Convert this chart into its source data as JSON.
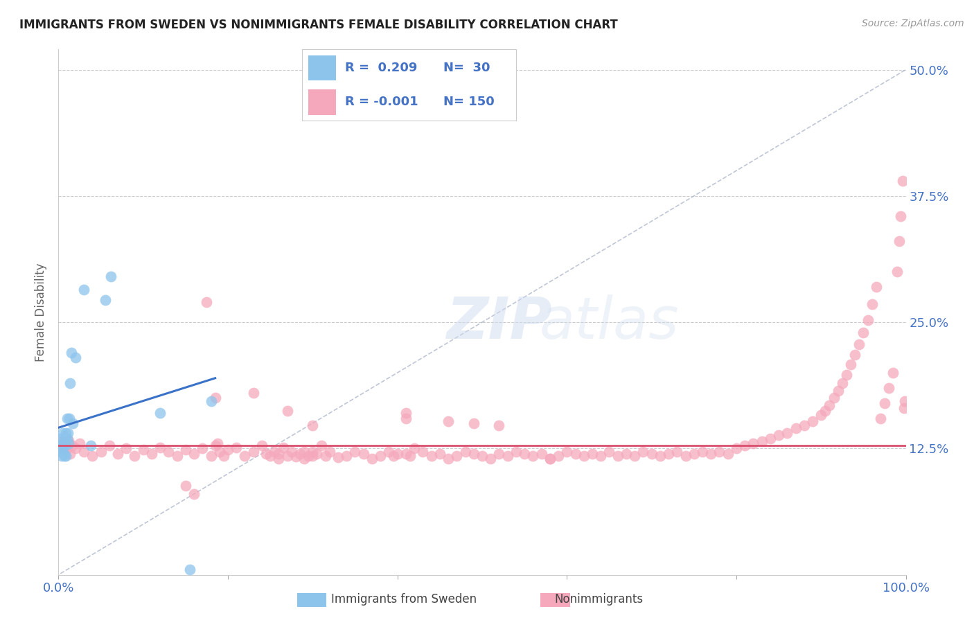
{
  "title": "IMMIGRANTS FROM SWEDEN VS NONIMMIGRANTS FEMALE DISABILITY CORRELATION CHART",
  "source": "Source: ZipAtlas.com",
  "ylabel": "Female Disability",
  "xlim": [
    0.0,
    1.0
  ],
  "ylim": [
    0.0,
    0.52
  ],
  "ytick_vals": [
    0.125,
    0.25,
    0.375,
    0.5
  ],
  "ytick_labels": [
    "12.5%",
    "25.0%",
    "37.5%",
    "50.0%"
  ],
  "xtick_vals": [
    0.0,
    0.2,
    0.4,
    0.6,
    0.8,
    1.0
  ],
  "xtick_labels": [
    "0.0%",
    "",
    "",
    "",
    "",
    "100.0%"
  ],
  "blue_color": "#8DC4EC",
  "pink_color": "#F5A8BC",
  "trendline_blue_color": "#3A72C8",
  "trendline_pink_color": "#D94F6E",
  "diag_color": "#B0B8CC",
  "R_blue": 0.209,
  "N_blue": 30,
  "R_pink": -0.001,
  "N_pink": 150,
  "pink_trend_y": 0.128,
  "blue_x": [
    0.002,
    0.003,
    0.003,
    0.004,
    0.004,
    0.005,
    0.005,
    0.006,
    0.007,
    0.007,
    0.008,
    0.008,
    0.009,
    0.009,
    0.01,
    0.01,
    0.011,
    0.012,
    0.013,
    0.014,
    0.015,
    0.017,
    0.02,
    0.03,
    0.038,
    0.055,
    0.062,
    0.12,
    0.155,
    0.18
  ],
  "blue_y": [
    0.128,
    0.122,
    0.135,
    0.118,
    0.13,
    0.125,
    0.14,
    0.12,
    0.13,
    0.118,
    0.135,
    0.128,
    0.14,
    0.118,
    0.135,
    0.155,
    0.14,
    0.13,
    0.155,
    0.19,
    0.22,
    0.15,
    0.215,
    0.282,
    0.128,
    0.272,
    0.295,
    0.16,
    0.005,
    0.172
  ],
  "pink_x": [
    0.002,
    0.004,
    0.006,
    0.008,
    0.01,
    0.012,
    0.014,
    0.016,
    0.02,
    0.025,
    0.03,
    0.04,
    0.05,
    0.06,
    0.07,
    0.08,
    0.09,
    0.1,
    0.11,
    0.12,
    0.13,
    0.14,
    0.15,
    0.16,
    0.17,
    0.175,
    0.18,
    0.185,
    0.188,
    0.19,
    0.195,
    0.2,
    0.21,
    0.22,
    0.23,
    0.24,
    0.245,
    0.25,
    0.255,
    0.26,
    0.265,
    0.27,
    0.275,
    0.28,
    0.285,
    0.29,
    0.295,
    0.3,
    0.305,
    0.31,
    0.315,
    0.32,
    0.33,
    0.34,
    0.35,
    0.36,
    0.37,
    0.38,
    0.39,
    0.4,
    0.41,
    0.415,
    0.42,
    0.43,
    0.44,
    0.45,
    0.46,
    0.47,
    0.48,
    0.49,
    0.5,
    0.51,
    0.52,
    0.53,
    0.54,
    0.55,
    0.56,
    0.57,
    0.58,
    0.59,
    0.6,
    0.61,
    0.62,
    0.63,
    0.64,
    0.65,
    0.66,
    0.67,
    0.68,
    0.69,
    0.7,
    0.71,
    0.72,
    0.73,
    0.74,
    0.75,
    0.76,
    0.77,
    0.78,
    0.79,
    0.8,
    0.81,
    0.82,
    0.83,
    0.84,
    0.85,
    0.86,
    0.87,
    0.88,
    0.89,
    0.9,
    0.905,
    0.91,
    0.915,
    0.92,
    0.925,
    0.93,
    0.935,
    0.94,
    0.945,
    0.95,
    0.955,
    0.96,
    0.965,
    0.97,
    0.975,
    0.98,
    0.985,
    0.99,
    0.992,
    0.994,
    0.996,
    0.998,
    0.999,
    0.185,
    0.23,
    0.27,
    0.3,
    0.41,
    0.46,
    0.49,
    0.52,
    0.15,
    0.16,
    0.29,
    0.3,
    0.26,
    0.58,
    0.395,
    0.41
  ],
  "pink_y": [
    0.128,
    0.132,
    0.126,
    0.13,
    0.125,
    0.133,
    0.12,
    0.128,
    0.125,
    0.13,
    0.122,
    0.118,
    0.122,
    0.128,
    0.12,
    0.125,
    0.118,
    0.124,
    0.12,
    0.126,
    0.122,
    0.118,
    0.124,
    0.12,
    0.125,
    0.27,
    0.118,
    0.128,
    0.13,
    0.122,
    0.118,
    0.124,
    0.126,
    0.118,
    0.122,
    0.128,
    0.12,
    0.118,
    0.122,
    0.115,
    0.126,
    0.118,
    0.122,
    0.117,
    0.12,
    0.115,
    0.118,
    0.122,
    0.12,
    0.128,
    0.118,
    0.122,
    0.116,
    0.118,
    0.122,
    0.12,
    0.115,
    0.118,
    0.122,
    0.12,
    0.16,
    0.118,
    0.125,
    0.122,
    0.118,
    0.12,
    0.115,
    0.118,
    0.122,
    0.12,
    0.118,
    0.115,
    0.12,
    0.118,
    0.122,
    0.12,
    0.118,
    0.12,
    0.115,
    0.118,
    0.122,
    0.12,
    0.118,
    0.12,
    0.118,
    0.122,
    0.118,
    0.12,
    0.118,
    0.122,
    0.12,
    0.118,
    0.12,
    0.122,
    0.118,
    0.12,
    0.122,
    0.12,
    0.122,
    0.12,
    0.125,
    0.128,
    0.13,
    0.132,
    0.135,
    0.138,
    0.14,
    0.145,
    0.148,
    0.152,
    0.158,
    0.162,
    0.168,
    0.175,
    0.182,
    0.19,
    0.198,
    0.208,
    0.218,
    0.228,
    0.24,
    0.252,
    0.268,
    0.285,
    0.155,
    0.17,
    0.185,
    0.2,
    0.3,
    0.33,
    0.355,
    0.39,
    0.165,
    0.172,
    0.175,
    0.18,
    0.162,
    0.148,
    0.155,
    0.152,
    0.15,
    0.148,
    0.088,
    0.08,
    0.122,
    0.118,
    0.12,
    0.115,
    0.118,
    0.12
  ]
}
